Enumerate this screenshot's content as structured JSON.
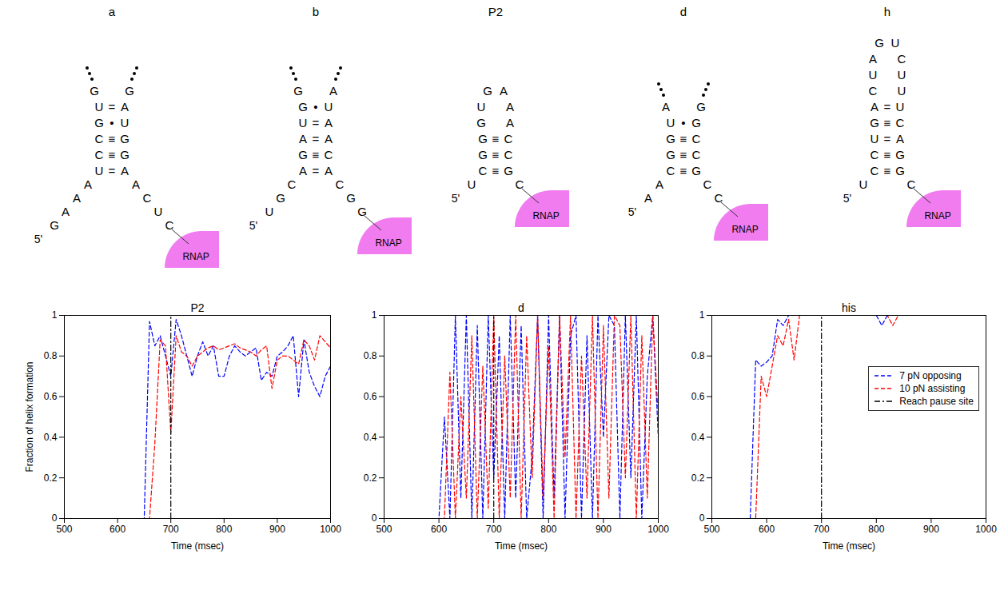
{
  "structures": [
    {
      "label": "a",
      "loop": {
        "top": [
          "G",
          "G"
        ],
        "left": [],
        "right": []
      },
      "pairs": [
        [
          "U",
          "=",
          "A"
        ],
        [
          "G",
          "•",
          "U"
        ],
        [
          "C",
          "≡",
          "G"
        ],
        [
          "C",
          "≡",
          "G"
        ],
        [
          "U",
          "=",
          "A"
        ]
      ],
      "tail5": [
        "G",
        "A",
        "A",
        "A"
      ],
      "tail3": [
        "A",
        "C",
        "U",
        "C"
      ],
      "end5": "5'",
      "enzyme": "RNAP"
    },
    {
      "label": "b",
      "loop": {
        "top": [
          "G",
          "A"
        ],
        "left": [],
        "right": []
      },
      "pairs": [
        [
          "G",
          "•",
          "U"
        ],
        [
          "U",
          "=",
          "A"
        ],
        [
          "A",
          "=",
          "A"
        ],
        [
          "G",
          "≡",
          "C"
        ],
        [
          "A",
          "=",
          "A"
        ]
      ],
      "tail5": [
        "U",
        "G",
        "C"
      ],
      "tail3": [
        "C",
        "G",
        "G"
      ],
      "end5": "5'",
      "enzyme": "RNAP"
    },
    {
      "label": "P2",
      "loop": {
        "top": [
          "G",
          "A"
        ],
        "left": [
          "U",
          "G"
        ],
        "right": [
          "A",
          "A"
        ]
      },
      "pairs": [
        [
          "G",
          "≡",
          "C"
        ],
        [
          "G",
          "≡",
          "C"
        ],
        [
          "C",
          "≡",
          "G"
        ]
      ],
      "tail5": [
        "U"
      ],
      "tail3": [
        "C"
      ],
      "end5": "5'",
      "enzyme": "RNAP"
    },
    {
      "label": "d",
      "loop": {
        "top": [
          "A",
          "G"
        ],
        "left": [],
        "right": []
      },
      "pairs": [
        [
          "U",
          "•",
          "G"
        ],
        [
          "G",
          "≡",
          "C"
        ],
        [
          "G",
          "≡",
          "C"
        ],
        [
          "C",
          "≡",
          "G"
        ]
      ],
      "tail5": [
        "A",
        "A"
      ],
      "tail3": [
        "C",
        "C"
      ],
      "end5": "5'",
      "enzyme": "RNAP"
    },
    {
      "label": "h",
      "loop": {
        "top": [
          "G",
          "U"
        ],
        "left": [
          "A",
          "U",
          "C"
        ],
        "right": [
          "C",
          "U",
          "U"
        ]
      },
      "pairs": [
        [
          "A",
          "=",
          "U"
        ],
        [
          "G",
          "≡",
          "C"
        ],
        [
          "U",
          "=",
          "A"
        ],
        [
          "C",
          "≡",
          "G"
        ],
        [
          "C",
          "≡",
          "G"
        ]
      ],
      "tail5": [
        "U"
      ],
      "tail3": [
        "C"
      ],
      "end5": "5'",
      "enzyme": "RNAP"
    }
  ],
  "chart_data": [
    {
      "type": "line",
      "title": "P2",
      "xlabel": "Time (msec)",
      "ylabel": "Fraction of helix formation",
      "x": [
        500,
        570,
        580,
        590,
        600,
        610,
        620,
        630,
        640,
        650,
        660,
        670,
        680,
        690,
        700,
        710,
        720,
        730,
        740,
        750,
        760,
        770,
        780,
        790,
        800,
        810,
        820,
        830,
        840,
        850,
        860,
        870,
        880,
        890,
        900,
        910,
        920,
        930,
        940,
        950,
        960,
        970,
        980,
        990,
        1000
      ],
      "xlim": [
        500,
        1000
      ],
      "xticks": [
        500,
        600,
        700,
        800,
        900,
        1000
      ],
      "ylim": [
        0,
        1
      ],
      "yticks": [
        0,
        0.2,
        0.4,
        0.6,
        0.8,
        1
      ],
      "series": [
        {
          "color": "#0000ff",
          "line_style": "dashed",
          "values": [
            0,
            0,
            0,
            0,
            0,
            0,
            0,
            0,
            0,
            0,
            0.97,
            0.85,
            0.9,
            0.8,
            0.7,
            0.98,
            0.9,
            0.8,
            0.7,
            0.8,
            0.87,
            0.8,
            0.85,
            0.7,
            0.7,
            0.8,
            0.85,
            0.82,
            0.8,
            0.82,
            0.84,
            0.68,
            0.72,
            0.7,
            0.8,
            0.82,
            0.85,
            0.9,
            0.6,
            0.88,
            0.72,
            0.65,
            0.6,
            0.7,
            0.75
          ]
        },
        {
          "color": "#ff0000",
          "line_style": "dashed",
          "values": [
            0,
            0,
            0,
            0,
            0,
            0,
            0,
            0,
            0,
            0,
            0,
            0.37,
            0.88,
            0.85,
            0.42,
            0.9,
            0.82,
            0.8,
            0.75,
            0.8,
            0.82,
            0.84,
            0.85,
            0.83,
            0.84,
            0.85,
            0.86,
            0.84,
            0.83,
            0.82,
            0.8,
            0.83,
            0.85,
            0.64,
            0.78,
            0.8,
            0.8,
            0.78,
            0.76,
            0.88,
            0.85,
            0.78,
            0.9,
            0.87,
            0.84
          ]
        },
        {
          "color": "#000000",
          "line_style": "dashdot",
          "x": [
            700,
            700
          ],
          "values": [
            0,
            1
          ]
        }
      ]
    },
    {
      "type": "line",
      "title": "d",
      "xlabel": "Time (msec)",
      "x": [
        500,
        570,
        580,
        590,
        600,
        610,
        620,
        630,
        640,
        650,
        660,
        670,
        680,
        690,
        700,
        710,
        720,
        730,
        740,
        750,
        760,
        770,
        780,
        790,
        800,
        810,
        820,
        830,
        840,
        850,
        860,
        870,
        880,
        890,
        900,
        910,
        920,
        930,
        940,
        950,
        960,
        970,
        980,
        990,
        1000
      ],
      "xlim": [
        500,
        1000
      ],
      "xticks": [
        500,
        600,
        700,
        800,
        900,
        1000
      ],
      "ylim": [
        0,
        1
      ],
      "yticks": [
        0,
        0.2,
        0.4,
        0.6,
        0.8,
        1
      ],
      "series": [
        {
          "color": "#0000ff",
          "line_style": "dashed",
          "values": [
            0,
            0,
            0,
            0,
            0,
            0.5,
            0,
            1,
            0.1,
            1,
            0,
            0.95,
            0,
            1,
            0.2,
            0.9,
            0,
            1,
            0.1,
            0.95,
            0,
            0.3,
            1,
            0,
            1,
            0.1,
            1,
            0,
            0.9,
            1,
            0,
            0.9,
            0,
            1,
            0.4,
            1,
            0.95,
            0,
            1,
            0.2,
            1,
            0,
            0.7,
            1,
            0.4
          ]
        },
        {
          "color": "#ff0000",
          "line_style": "dashed",
          "values": [
            0,
            0,
            0,
            0,
            0,
            0,
            0.72,
            0,
            0.6,
            0.1,
            0.9,
            0,
            0.75,
            0.05,
            1,
            0,
            0.8,
            0.1,
            1,
            0,
            0.9,
            0.2,
            1,
            0.1,
            0.85,
            0,
            1,
            0.3,
            1,
            0,
            0.8,
            0.1,
            1,
            0,
            0.95,
            0.1,
            1,
            0.95,
            0.2,
            1,
            0,
            0.9,
            0.1,
            1,
            0.5
          ]
        },
        {
          "color": "#000000",
          "line_style": "dashdot",
          "x": [
            700,
            700
          ],
          "values": [
            0,
            1
          ]
        }
      ]
    },
    {
      "type": "line",
      "title": "his",
      "xlabel": "Time (msec)",
      "legend": "right",
      "x": [
        500,
        570,
        580,
        590,
        600,
        610,
        620,
        630,
        640,
        650,
        660,
        670,
        680,
        690,
        700,
        710,
        720,
        730,
        740,
        750,
        760,
        770,
        780,
        790,
        800,
        810,
        820,
        830,
        840,
        850,
        860,
        870,
        880,
        890,
        900,
        910,
        920,
        930,
        940,
        950,
        960,
        970,
        980,
        990,
        1000
      ],
      "xlim": [
        500,
        1000
      ],
      "xticks": [
        500,
        600,
        700,
        800,
        900,
        1000
      ],
      "ylim": [
        0,
        1
      ],
      "yticks": [
        0,
        0.2,
        0.4,
        0.6,
        0.8,
        1
      ],
      "series": [
        {
          "name": "7 pN opposing",
          "color": "#0000ff",
          "line_style": "dashed",
          "values": [
            0,
            0,
            0.78,
            0.75,
            0.77,
            0.8,
            0.98,
            0.95,
            1,
            1,
            1,
            1,
            1,
            1,
            1,
            1,
            1,
            1,
            1,
            1,
            1,
            1,
            1,
            1,
            1,
            0.95,
            1,
            1,
            1,
            1,
            1,
            1,
            1,
            1,
            1,
            1,
            1,
            1,
            1,
            1,
            1,
            1,
            1,
            1,
            1
          ]
        },
        {
          "name": "10 pN assisting",
          "color": "#ff0000",
          "line_style": "dashed",
          "values": [
            0,
            0,
            0,
            0.7,
            0.6,
            0.75,
            0.9,
            0.85,
            0.98,
            0.78,
            1,
            1,
            1,
            1,
            1,
            1,
            1,
            1,
            1,
            1,
            1,
            1,
            1,
            1,
            1,
            1,
            1,
            0.95,
            1,
            1,
            1,
            1,
            1,
            1,
            1,
            1,
            1,
            1,
            1,
            1,
            1,
            1,
            1,
            1,
            1
          ]
        },
        {
          "name": "Reach pause site",
          "color": "#000000",
          "line_style": "dashdot",
          "x": [
            700,
            700
          ],
          "values": [
            0,
            1
          ]
        }
      ]
    }
  ]
}
